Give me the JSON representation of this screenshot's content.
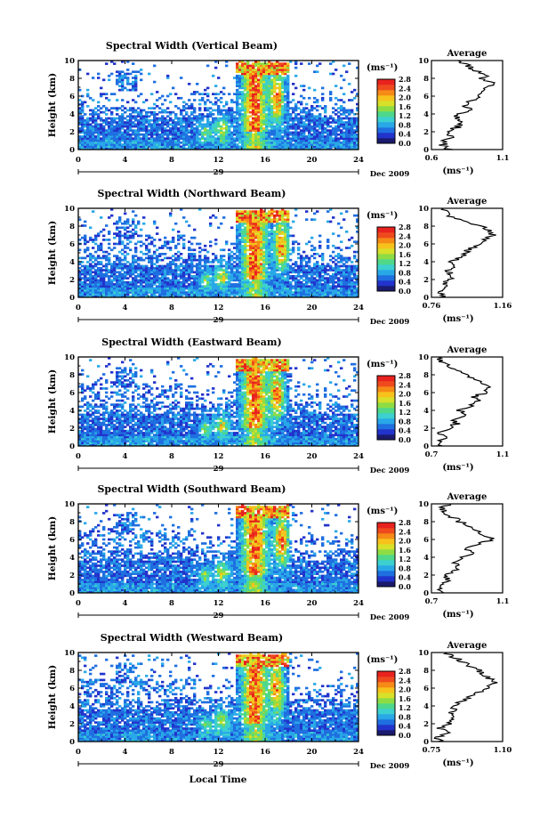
{
  "figure": {
    "xlabel": "Local Time",
    "date_label": "Dec 2009",
    "day_label": "29",
    "unit_label": "(ms⁻¹)",
    "avg_title": "Average",
    "ylabel": "Height (km)"
  },
  "colorbar": {
    "ticks": [
      "0.0",
      "0.4",
      "0.8",
      "1.2",
      "1.6",
      "2.0",
      "2.4",
      "2.8"
    ],
    "colors": [
      "#1a1a6e",
      "#2233cc",
      "#1f6fe0",
      "#29a8e8",
      "#3cd0d0",
      "#4fd88a",
      "#8edc44",
      "#d8e02a",
      "#f7c21c",
      "#f58a16",
      "#ef4a1e",
      "#e8221e"
    ]
  },
  "chart_data": [
    {
      "type": "heatmap",
      "title": "Spectral Width (Vertical Beam)",
      "xlabel": "Local Time",
      "ylabel": "Height (km)",
      "xlim": [
        0,
        24
      ],
      "ylim": [
        0,
        10
      ],
      "xticks": [
        0,
        4,
        8,
        12,
        16,
        20,
        24
      ],
      "yticks": [
        0,
        2,
        4,
        6,
        8,
        10
      ],
      "color_range": [
        0.0,
        2.8
      ],
      "average_profile": {
        "xlim": [
          0.6,
          1.1
        ],
        "xticks": [
          "0.6",
          "1.1"
        ],
        "xlabel": "(ms⁻¹)",
        "height": [
          0,
          0.5,
          1,
          1.5,
          2,
          2.5,
          3,
          3.5,
          4,
          4.5,
          5,
          5.5,
          6,
          6.5,
          7,
          7.5,
          8,
          8.5,
          9,
          9.5,
          10
        ],
        "width": [
          0.72,
          0.68,
          0.7,
          0.74,
          0.71,
          0.78,
          0.82,
          0.76,
          0.8,
          0.86,
          0.84,
          0.88,
          0.92,
          0.95,
          1.0,
          1.02,
          0.96,
          0.98,
          0.9,
          0.85,
          0.8
        ]
      }
    },
    {
      "type": "heatmap",
      "title": "Spectral Width (Northward Beam)",
      "xlabel": "Local Time",
      "ylabel": "Height (km)",
      "xlim": [
        0,
        24
      ],
      "ylim": [
        0,
        10
      ],
      "xticks": [
        0,
        4,
        8,
        12,
        16,
        20,
        24
      ],
      "yticks": [
        0,
        2,
        4,
        6,
        8,
        10
      ],
      "color_range": [
        0.0,
        2.8
      ],
      "average_profile": {
        "xlim": [
          0.76,
          1.16
        ],
        "xticks": [
          "0.76",
          "1.16"
        ],
        "xlabel": "(ms⁻¹)",
        "height": [
          0,
          0.5,
          1,
          1.5,
          2,
          2.5,
          3,
          3.5,
          4,
          4.5,
          5,
          5.5,
          6,
          6.5,
          7,
          7.5,
          8,
          8.5,
          9,
          9.5,
          10
        ],
        "width": [
          0.82,
          0.8,
          0.84,
          0.83,
          0.86,
          0.88,
          0.85,
          0.9,
          0.87,
          0.92,
          0.95,
          0.98,
          1.02,
          1.06,
          1.1,
          1.08,
          1.04,
          0.96,
          0.88,
          0.84,
          0.82
        ]
      }
    },
    {
      "type": "heatmap",
      "title": "Spectral Width (Eastward Beam)",
      "xlabel": "Local Time",
      "ylabel": "Height (km)",
      "xlim": [
        0,
        24
      ],
      "ylim": [
        0,
        10
      ],
      "xticks": [
        0,
        4,
        8,
        12,
        16,
        20,
        24
      ],
      "yticks": [
        0,
        2,
        4,
        6,
        8,
        10
      ],
      "color_range": [
        0.0,
        2.8
      ],
      "average_profile": {
        "xlim": [
          0.7,
          1.1
        ],
        "xticks": [
          "0.7",
          "1.1"
        ],
        "xlabel": "(ms⁻¹)",
        "height": [
          0,
          0.5,
          1,
          1.5,
          2,
          2.5,
          3,
          3.5,
          4,
          4.5,
          5,
          5.5,
          6,
          6.5,
          7,
          7.5,
          8,
          8.5,
          9,
          9.5,
          10
        ],
        "width": [
          0.76,
          0.74,
          0.78,
          0.75,
          0.8,
          0.84,
          0.82,
          0.88,
          0.86,
          0.92,
          0.96,
          0.94,
          1.0,
          1.02,
          0.98,
          0.94,
          0.9,
          0.86,
          0.8,
          0.76,
          0.74
        ]
      }
    },
    {
      "type": "heatmap",
      "title": "Spectral Width (Southward Beam)",
      "xlabel": "Local Time",
      "ylabel": "Height (km)",
      "xlim": [
        0,
        24
      ],
      "ylim": [
        0,
        10
      ],
      "xticks": [
        0,
        4,
        8,
        12,
        16,
        20,
        24
      ],
      "yticks": [
        0,
        2,
        4,
        6,
        8,
        10
      ],
      "color_range": [
        0.0,
        2.8
      ],
      "average_profile": {
        "xlim": [
          0.7,
          1.1
        ],
        "xticks": [
          "0.7",
          "1.1"
        ],
        "xlabel": "(ms⁻¹)",
        "height": [
          0,
          0.5,
          1,
          1.5,
          2,
          2.5,
          3,
          3.5,
          4,
          4.5,
          5,
          5.5,
          6,
          6.5,
          7,
          7.5,
          8,
          8.5,
          9,
          9.5,
          10
        ],
        "width": [
          0.78,
          0.74,
          0.76,
          0.8,
          0.78,
          0.84,
          0.86,
          0.82,
          0.88,
          0.94,
          0.9,
          0.96,
          1.04,
          1.0,
          0.96,
          0.92,
          0.86,
          0.82,
          0.78,
          0.76,
          0.8
        ]
      }
    },
    {
      "type": "heatmap",
      "title": "Spectral Width (Westward Beam)",
      "xlabel": "Local Time",
      "ylabel": "Height (km)",
      "xlim": [
        0,
        24
      ],
      "ylim": [
        0,
        10
      ],
      "xticks": [
        0,
        4,
        8,
        12,
        16,
        20,
        24
      ],
      "yticks": [
        0,
        2,
        4,
        6,
        8,
        10
      ],
      "color_range": [
        0.0,
        2.8
      ],
      "average_profile": {
        "xlim": [
          0.75,
          1.1
        ],
        "xticks": [
          "0.75",
          "1.10"
        ],
        "xlabel": "(ms⁻¹)",
        "height": [
          0,
          0.5,
          1,
          1.5,
          2,
          2.5,
          3,
          3.5,
          4,
          4.5,
          5,
          5.5,
          6,
          6.5,
          7,
          7.5,
          8,
          8.5,
          9,
          9.5,
          10
        ],
        "width": [
          0.8,
          0.78,
          0.82,
          0.79,
          0.84,
          0.86,
          0.83,
          0.88,
          0.85,
          0.9,
          0.94,
          0.98,
          1.02,
          1.06,
          1.04,
          1.0,
          0.98,
          0.94,
          0.9,
          0.86,
          0.82
        ]
      }
    }
  ]
}
